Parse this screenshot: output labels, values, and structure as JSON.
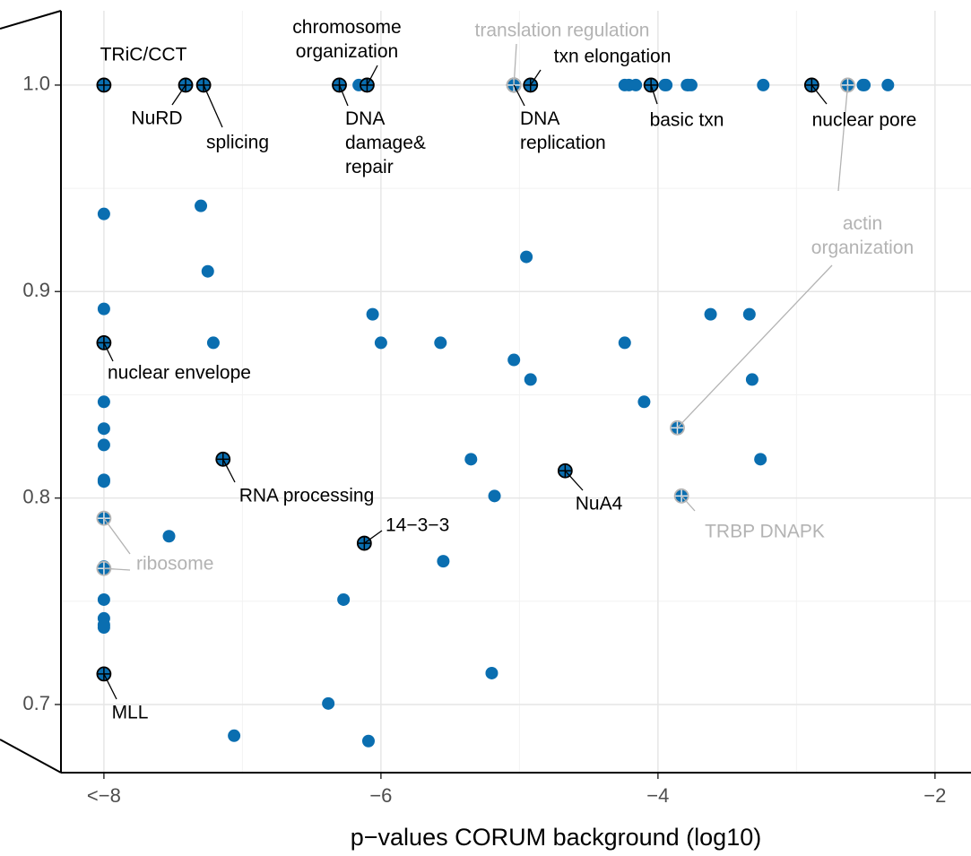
{
  "chart_data": {
    "type": "scatter",
    "x_label": "p−values CORUM background (log10)",
    "xlim": [
      -8.31,
      -1.74
    ],
    "ylim": [
      0.667,
      1.036
    ],
    "xticks": [
      {
        "value": -8,
        "label": "<−8"
      },
      {
        "value": -6,
        "label": "−6"
      },
      {
        "value": -4,
        "label": "−4"
      },
      {
        "value": -2,
        "label": "−2"
      }
    ],
    "yticks": [
      {
        "value": 0.7,
        "label": "0.7"
      },
      {
        "value": 0.8,
        "label": "0.8"
      },
      {
        "value": 0.9,
        "label": "0.9"
      },
      {
        "value": 1,
        "label": "1.0"
      }
    ],
    "x_minor": [
      -7,
      -5,
      -3
    ],
    "y_minor": [
      0.75,
      0.85,
      0.95
    ],
    "grid": true,
    "series": [
      {
        "color": "#0a6eb0",
        "x": [
          -7.41,
          -7.28,
          -6.3,
          -6.16,
          -6.1,
          -4.92,
          -4.24,
          -4.21,
          -4.16,
          -3.95,
          -3.94,
          -3.79,
          -3.78,
          -3.76,
          -3.24,
          -2.52,
          -2.51,
          -2.34,
          -8,
          -7.3,
          -7.25,
          -8,
          -7.21,
          -6.06,
          -6.0,
          -5.57,
          -4.95,
          -5.04,
          -4.92,
          -4.24,
          -3.62,
          -3.34,
          -3.32,
          -4.1,
          -8,
          -8,
          -8,
          -8,
          -8,
          -5.35,
          -3.26,
          -5.18,
          -8,
          -7.53,
          -5.55,
          -6.27,
          -8,
          -8,
          -8,
          -8,
          -5.2,
          -6.38,
          -7.06,
          -6.09
        ],
        "values": [
          1,
          1,
          1,
          1,
          1,
          1,
          1,
          1,
          1,
          1,
          1,
          1,
          1,
          1,
          1,
          1,
          1,
          1,
          0.9376,
          0.9415,
          0.9098,
          0.8916,
          0.8752,
          0.889,
          0.8752,
          0.8752,
          0.9168,
          0.8669,
          0.8574,
          0.8752,
          0.889,
          0.889,
          0.8574,
          0.8466,
          0.8466,
          0.8336,
          0.8257,
          0.8088,
          0.808,
          0.8188,
          0.8188,
          0.801,
          0.7668,
          0.7815,
          0.7694,
          0.7508,
          0.7508,
          0.7417,
          0.7386,
          0.7373,
          0.7152,
          0.7005,
          0.6849,
          0.6823
        ]
      },
      {
        "color": "#000000",
        "x": [
          -8,
          -7.41,
          -7.28,
          -6.3,
          -6.1,
          -4.92,
          -5.04,
          -4.05,
          -2.89,
          -8,
          -7.14,
          -4.67,
          -6.12,
          -8
        ],
        "values": [
          1,
          1,
          1,
          1,
          1,
          1,
          1,
          1,
          1,
          0.8752,
          0.8188,
          0.8132,
          0.7781,
          0.7148
        ],
        "labels": [
          "TRiC/CCT",
          "NuRD",
          "splicing",
          "DNA\ndamage&\nrepair",
          "chromosome\norganization",
          "txn elongation",
          "DNA\nreplication",
          "basic txn",
          "nuclear pore",
          "nuclear envelope",
          "RNA processing",
          "NuA4",
          "14−3−3",
          "MLL"
        ]
      },
      {
        "color": "#b3b3b3",
        "x": [
          -5.04,
          -2.63,
          -3.86,
          -3.83,
          -8,
          -8
        ],
        "values": [
          1,
          1,
          0.834,
          0.801,
          0.7902,
          0.7659
        ],
        "labels": [
          "translation regulation",
          "actin\norganization",
          null,
          "TRBP DNAPK",
          "ribosome",
          null
        ]
      }
    ]
  }
}
